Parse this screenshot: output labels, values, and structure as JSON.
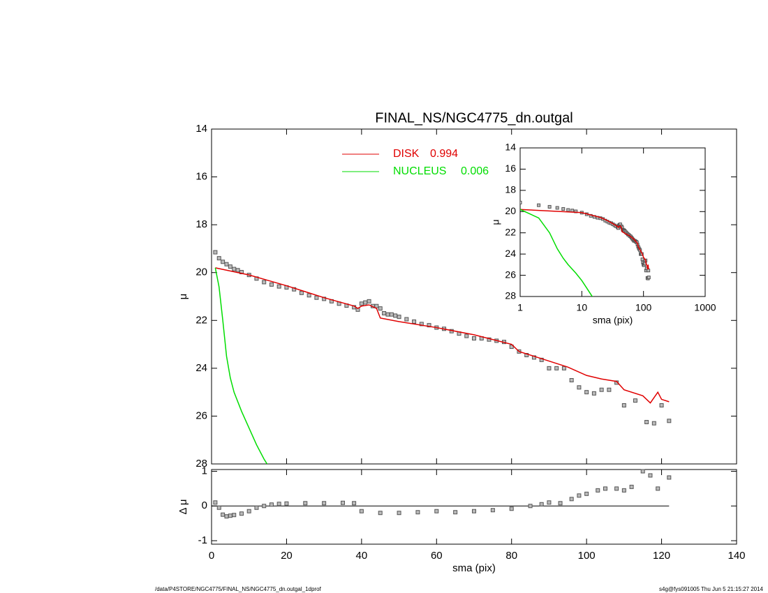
{
  "chart_data": [
    {
      "type": "profile",
      "title": "FINAL_NS/NGC4775_dn.outgal",
      "ylabel": "μ",
      "xlim": [
        0,
        140
      ],
      "xticks": [
        0,
        20,
        40,
        60,
        80,
        100,
        120,
        140
      ],
      "ylim": [
        28,
        14
      ],
      "yticks": [
        14,
        16,
        18,
        20,
        22,
        24,
        26,
        28
      ],
      "points": {
        "color": "#555555",
        "x": [
          1,
          2,
          3,
          4,
          5,
          6,
          7,
          8,
          10,
          12,
          14,
          16,
          18,
          20,
          22,
          24,
          26,
          28,
          30,
          32,
          34,
          36,
          38,
          39,
          40,
          41,
          42,
          43,
          44,
          45,
          46,
          47,
          48,
          49,
          50,
          52,
          54,
          56,
          58,
          60,
          62,
          64,
          66,
          68,
          70,
          72,
          74,
          76,
          78,
          80,
          82,
          84,
          86,
          88,
          90,
          92,
          94,
          96,
          98,
          100,
          102,
          104,
          106,
          108,
          110,
          113,
          116,
          118,
          120,
          122
        ],
        "values": [
          19.15,
          19.4,
          19.55,
          19.65,
          19.75,
          19.85,
          19.9,
          19.98,
          20.1,
          20.25,
          20.4,
          20.5,
          20.58,
          20.62,
          20.7,
          20.85,
          20.95,
          21.05,
          21.1,
          21.2,
          21.3,
          21.38,
          21.45,
          21.55,
          21.3,
          21.25,
          21.2,
          21.4,
          21.4,
          21.5,
          21.7,
          21.75,
          21.75,
          21.8,
          21.85,
          21.95,
          22.05,
          22.15,
          22.2,
          22.3,
          22.35,
          22.45,
          22.55,
          22.65,
          22.75,
          22.75,
          22.8,
          22.85,
          22.9,
          23.1,
          23.3,
          23.45,
          23.55,
          23.65,
          24.0,
          24.0,
          24.0,
          24.5,
          24.8,
          25.0,
          25.05,
          24.9,
          24.9,
          24.6,
          25.55,
          25.35,
          26.25,
          26.3,
          25.55,
          26.2
        ]
      },
      "series": [
        {
          "name": "DISK",
          "fraction": 0.994,
          "color": "#e00000",
          "x": [
            1,
            10,
            20,
            25,
            30,
            38,
            39,
            40,
            42,
            44,
            45,
            50,
            60,
            70,
            80,
            82,
            90,
            95,
            100,
            104,
            108,
            110,
            115,
            117,
            119,
            120,
            122
          ],
          "values": [
            19.8,
            20.1,
            20.55,
            20.8,
            21.05,
            21.4,
            21.5,
            21.4,
            21.35,
            21.5,
            21.9,
            22.05,
            22.3,
            22.6,
            23.0,
            23.3,
            23.7,
            23.95,
            24.3,
            24.45,
            24.55,
            24.9,
            25.15,
            25.45,
            25.0,
            25.3,
            25.4
          ]
        },
        {
          "name": "NUCLEUS",
          "fraction": 0.006,
          "color": "#00dd00",
          "x": [
            1,
            2,
            3,
            4,
            5,
            6,
            8,
            10,
            12,
            14,
            16
          ],
          "values": [
            19.8,
            20.6,
            22.0,
            23.5,
            24.4,
            25.0,
            25.8,
            26.5,
            27.2,
            27.8,
            28.3
          ]
        }
      ]
    },
    {
      "type": "scatter",
      "xlabel": "sma (pix)",
      "ylabel": "Δ μ",
      "xlim": [
        0,
        140
      ],
      "xticks": [
        0,
        20,
        40,
        60,
        80,
        100,
        120,
        140
      ],
      "ylim": [
        -1.1,
        1.05
      ],
      "yticks": [
        -1,
        0,
        1
      ],
      "color": "#555555",
      "x": [
        1,
        2,
        3,
        4,
        5,
        6,
        8,
        10,
        12,
        14,
        16,
        18,
        20,
        25,
        30,
        35,
        38,
        40,
        45,
        50,
        55,
        60,
        65,
        70,
        75,
        80,
        85,
        88,
        90,
        93,
        96,
        98,
        100,
        103,
        105,
        108,
        110,
        112,
        115,
        117,
        119,
        122
      ],
      "values": [
        0.1,
        -0.05,
        -0.25,
        -0.3,
        -0.28,
        -0.26,
        -0.22,
        -0.15,
        -0.05,
        0.0,
        0.04,
        0.06,
        0.07,
        0.08,
        0.08,
        0.09,
        0.08,
        -0.15,
        -0.2,
        -0.2,
        -0.18,
        -0.15,
        -0.18,
        -0.15,
        -0.12,
        -0.08,
        0.0,
        0.05,
        0.1,
        0.08,
        0.2,
        0.3,
        0.35,
        0.45,
        0.5,
        0.5,
        0.45,
        0.55,
        1.0,
        0.88,
        0.5,
        0.82
      ]
    },
    {
      "type": "inset",
      "xlabel": "sma (pix)",
      "ylabel": "μ",
      "xscale": "log",
      "xlim": [
        1,
        1000
      ],
      "xticks": [
        1,
        10,
        100,
        1000
      ],
      "ylim": [
        28,
        14
      ],
      "yticks": [
        14,
        16,
        18,
        20,
        22,
        24,
        26,
        28
      ]
    }
  ],
  "footer": {
    "left": "/data/P4STORE/NGC4775/FINAL_NS/NGC4775_dn.outgal_1dprof",
    "right": "s4g@fys091005  Thu Jun  5 21:15:27 2014"
  }
}
